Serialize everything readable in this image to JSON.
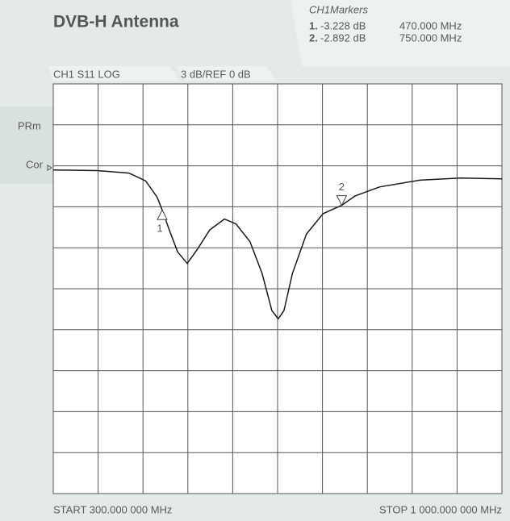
{
  "chart_data": {
    "type": "line",
    "title": "DVB-H Antenna",
    "marker_heading": "CH1Markers",
    "trace_label": "CH1 S11 LOG",
    "scale_label": "3 dB/REF 0 dB",
    "side_labels": [
      "PRm",
      "Cor"
    ],
    "start_label": "START 300.000 000 MHz",
    "stop_label": "STOP 1 000.000 000 MHz",
    "xlim": [
      300,
      1000
    ],
    "xticks": [
      300,
      370,
      440,
      510,
      580,
      650,
      720,
      790,
      860,
      930,
      1000
    ],
    "ylim": [
      -24,
      6
    ],
    "yticks": [
      6,
      3,
      0,
      -3,
      -6,
      -9,
      -12,
      -15,
      -18,
      -21,
      -24
    ],
    "grid": true,
    "color": "#1a1a1a",
    "x": [
      300,
      368,
      418,
      444,
      462,
      470,
      481,
      494,
      509,
      525,
      544,
      567,
      585,
      607,
      626,
      641,
      651,
      660,
      673,
      695,
      721,
      750,
      771,
      809,
      872,
      935,
      1000
    ],
    "values": [
      -0.3,
      -0.35,
      -0.53,
      -1.1,
      -2.3,
      -3.228,
      -4.7,
      -6.3,
      -7.15,
      -6.1,
      -4.7,
      -3.9,
      -4.25,
      -5.55,
      -7.9,
      -10.6,
      -11.2,
      -10.6,
      -7.9,
      -5.0,
      -3.5,
      -2.892,
      -2.2,
      -1.55,
      -1.05,
      -0.9,
      -0.95
    ],
    "markers": [
      {
        "name": "1",
        "table_label": "1.",
        "value": -3.228,
        "value_label": "-3.228 dB",
        "x": 470,
        "x_label": "470.000 MHz"
      },
      {
        "name": "2",
        "table_label": "2.",
        "value": -2.892,
        "value_label": "-2.892 dB",
        "x": 750,
        "x_label": "750.000 MHz"
      }
    ]
  }
}
